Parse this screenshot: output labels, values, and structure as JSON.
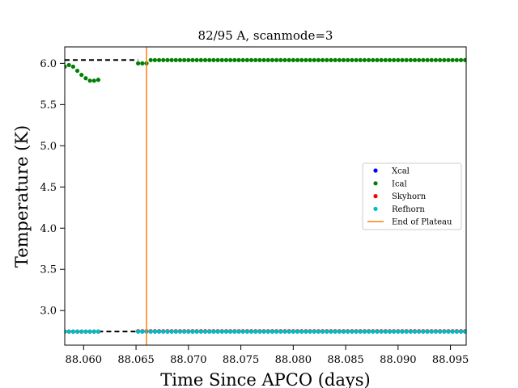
{
  "chart_data": {
    "type": "scatter",
    "title": "82/95 A, scanmode=3",
    "xlabel": "Time Since APCO (days)",
    "ylabel": "Temperature (K)",
    "xlim": [
      88.0582,
      88.0965
    ],
    "ylim": [
      2.58,
      6.2
    ],
    "x_ticks": [
      88.06,
      88.065,
      88.07,
      88.075,
      88.08,
      88.085,
      88.09,
      88.095
    ],
    "x_tick_labels": [
      "88.060",
      "88.065",
      "88.070",
      "88.075",
      "88.080",
      "88.085",
      "88.090",
      "88.095"
    ],
    "y_ticks": [
      3.0,
      3.5,
      4.0,
      4.5,
      5.0,
      5.5,
      6.0
    ],
    "y_tick_labels": [
      "3.0",
      "3.5",
      "4.0",
      "4.5",
      "5.0",
      "5.5",
      "6.0"
    ],
    "grid": false,
    "legend_position": "center-right",
    "end_of_plateau_x": 88.066,
    "reference_lines": [
      {
        "y": 6.04,
        "segments": [
          [
            88.0582,
            88.0652
          ]
        ],
        "color": "#000000"
      },
      {
        "y": 2.745,
        "segments": [
          [
            88.0614,
            88.0652
          ]
        ],
        "color": "#000000"
      }
    ],
    "series": [
      {
        "name": "Xcal",
        "color": "#0000ff",
        "segments": [
          {
            "x_start": 88.0582,
            "x_end": 88.0614,
            "step": 0.0004,
            "y": 2.745
          },
          {
            "x_start": 88.0652,
            "x_end": 88.0965,
            "step": 0.0004,
            "y": 2.745
          }
        ]
      },
      {
        "name": "Ical",
        "color": "#008000",
        "points": [
          [
            88.0582,
            5.96
          ],
          [
            88.0586,
            5.98
          ],
          [
            88.059,
            5.96
          ],
          [
            88.0594,
            5.91
          ],
          [
            88.0598,
            5.86
          ],
          [
            88.0602,
            5.82
          ],
          [
            88.0606,
            5.79
          ],
          [
            88.061,
            5.79
          ],
          [
            88.0614,
            5.8
          ]
        ],
        "segments": [
          {
            "x_start": 88.0652,
            "x_end": 88.066,
            "step": 0.0004,
            "y": 6.0
          },
          {
            "x_start": 88.0664,
            "x_end": 88.0965,
            "step": 0.0004,
            "y": 6.04
          }
        ]
      },
      {
        "name": "Skyhorn",
        "color": "#ff0000",
        "segments": [
          {
            "x_start": 88.0582,
            "x_end": 88.0614,
            "step": 0.0004,
            "y": 2.745
          },
          {
            "x_start": 88.0652,
            "x_end": 88.0965,
            "step": 0.0004,
            "y": 2.75
          }
        ]
      },
      {
        "name": "Refhorn",
        "color": "#00bfbf",
        "segments": [
          {
            "x_start": 88.0582,
            "x_end": 88.0614,
            "step": 0.0004,
            "y": 2.745
          },
          {
            "x_start": 88.0652,
            "x_end": 88.0965,
            "step": 0.0004,
            "y": 2.745
          }
        ]
      }
    ],
    "legend": [
      {
        "label": "Xcal",
        "kind": "marker",
        "color": "#0000ff"
      },
      {
        "label": "Ical",
        "kind": "marker",
        "color": "#008000"
      },
      {
        "label": "Skyhorn",
        "kind": "marker",
        "color": "#ff0000"
      },
      {
        "label": "Refhorn",
        "kind": "marker",
        "color": "#00bfbf"
      },
      {
        "label": "End of Plateau",
        "kind": "line",
        "color": "#ff7f0e"
      }
    ]
  }
}
